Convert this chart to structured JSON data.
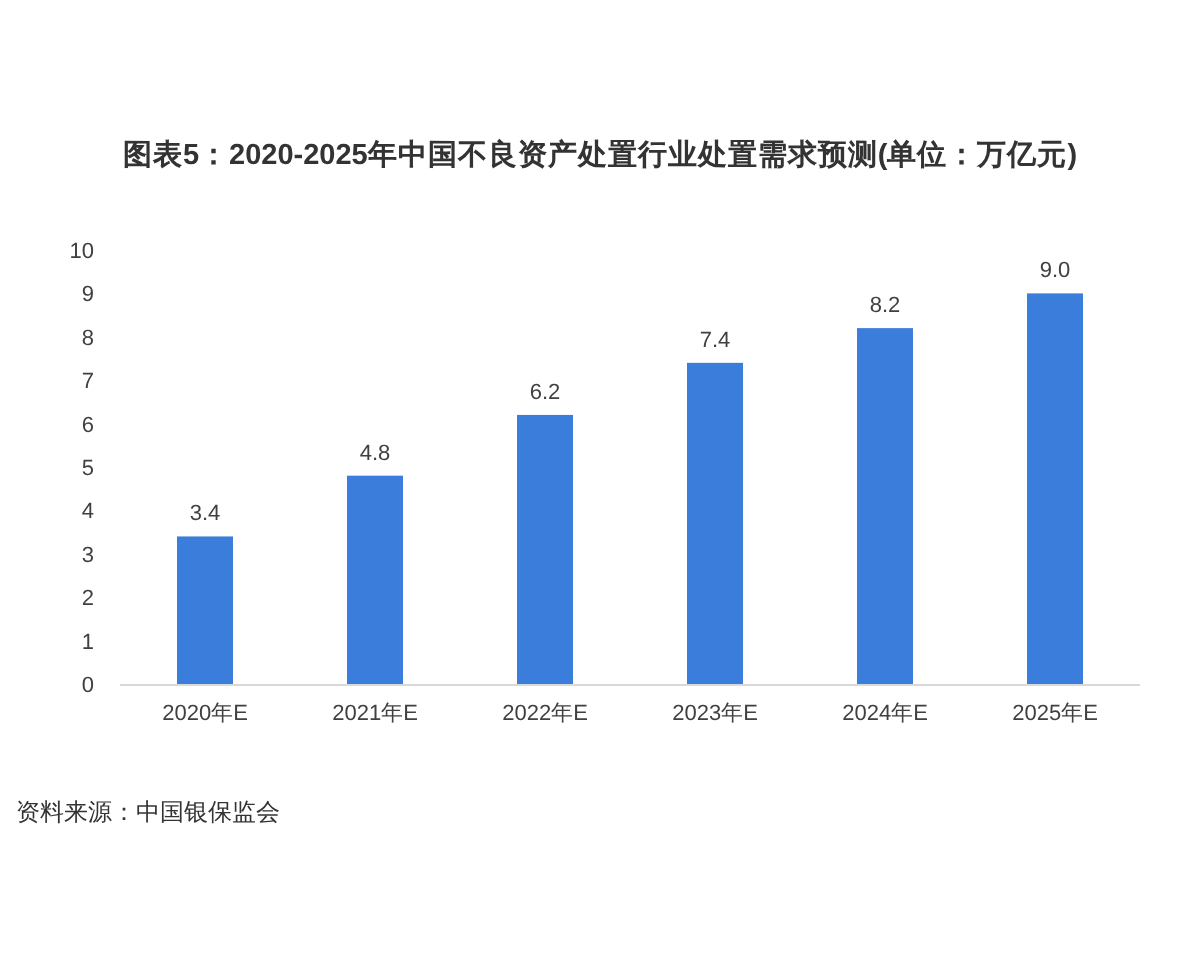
{
  "chart_data": {
    "type": "bar",
    "title": "图表5：2020-2025年中国不良资产处置行业处置需求预测(单位：万亿元)",
    "categories": [
      "2020年E",
      "2021年E",
      "2022年E",
      "2023年E",
      "2024年E",
      "2025年E"
    ],
    "values": [
      3.4,
      4.8,
      6.2,
      7.4,
      8.2,
      9.0
    ],
    "value_labels": [
      "3.4",
      "4.8",
      "6.2",
      "7.4",
      "8.2",
      "9.0"
    ],
    "color": "#3b7ddb",
    "ylim": [
      0,
      10
    ],
    "yticks": [
      0,
      1,
      2,
      3,
      4,
      5,
      6,
      7,
      8,
      9,
      10
    ],
    "annotations": [
      "资料来源：中国银保监会"
    ]
  }
}
